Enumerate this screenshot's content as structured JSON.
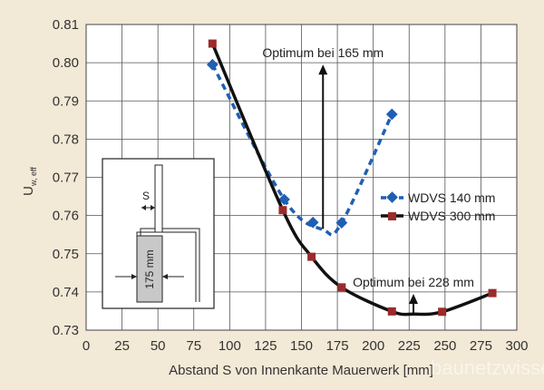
{
  "chart_data": {
    "type": "line",
    "title": "",
    "xlabel": "Abstand S von Innenkante Mauerwerk [mm]",
    "ylabel": "U",
    "ylabel_sub": "w, eff",
    "xlim": [
      0,
      300
    ],
    "ylim": [
      0.73,
      0.81
    ],
    "x_ticks": [
      0,
      25,
      50,
      75,
      100,
      125,
      150,
      175,
      200,
      225,
      250,
      275,
      300
    ],
    "y_ticks": [
      0.73,
      0.74,
      0.75,
      0.76,
      0.77,
      0.78,
      0.79,
      0.8,
      0.81
    ],
    "grid": true,
    "legend_position": "right",
    "series": [
      {
        "name": "WDVS 140 mm",
        "color": "#1f5fb3",
        "marker": "diamond",
        "line_style": "dashed",
        "points": [
          {
            "x": 88,
            "y": 0.7995
          },
          {
            "x": 138,
            "y": 0.7642
          },
          {
            "x": 158,
            "y": 0.7582
          },
          {
            "x": 178,
            "y": 0.7581
          },
          {
            "x": 213,
            "y": 0.7865
          }
        ],
        "curve": [
          {
            "x": 88,
            "y": 0.7995
          },
          {
            "x": 138,
            "y": 0.7642
          },
          {
            "x": 165,
            "y": 0.7563
          },
          {
            "x": 178,
            "y": 0.7581
          },
          {
            "x": 213,
            "y": 0.7865
          }
        ]
      },
      {
        "name": "WDVS 300 mm",
        "color": "#9b2b2b",
        "line_color": "#111111",
        "marker": "square",
        "line_style": "solid",
        "points": [
          {
            "x": 88,
            "y": 0.805
          },
          {
            "x": 137,
            "y": 0.7614
          },
          {
            "x": 157,
            "y": 0.7492
          },
          {
            "x": 178,
            "y": 0.7412
          },
          {
            "x": 213,
            "y": 0.7349
          },
          {
            "x": 248,
            "y": 0.7348
          },
          {
            "x": 283,
            "y": 0.7397
          }
        ],
        "curve": [
          {
            "x": 88,
            "y": 0.805
          },
          {
            "x": 137,
            "y": 0.7614
          },
          {
            "x": 157,
            "y": 0.7492
          },
          {
            "x": 178,
            "y": 0.7412
          },
          {
            "x": 213,
            "y": 0.7349
          },
          {
            "x": 228,
            "y": 0.7342
          },
          {
            "x": 248,
            "y": 0.7348
          },
          {
            "x": 283,
            "y": 0.7397
          }
        ]
      }
    ],
    "annotations": [
      {
        "text": "Optimum bei 165 mm",
        "x": 165,
        "y_from": 0.7565,
        "y_to": 0.7995
      },
      {
        "text": "Optimum bei 228 mm",
        "x": 228,
        "y_from": 0.7342,
        "y_to": 0.7395
      }
    ],
    "inset": {
      "s_label": "S",
      "dim_label": "175 mm"
    },
    "watermark": "baunetzwissen.de"
  }
}
